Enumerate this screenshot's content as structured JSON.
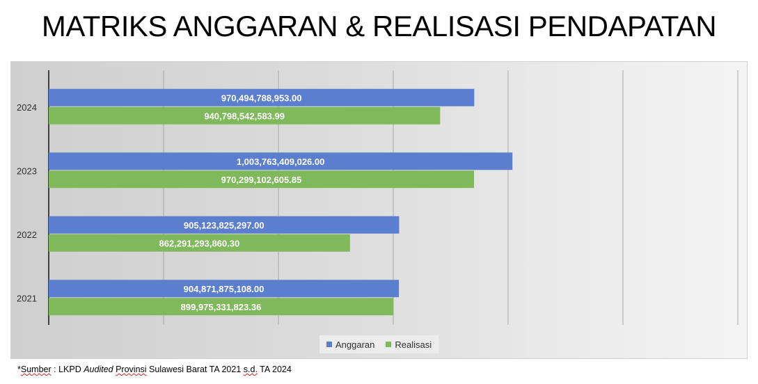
{
  "title": "MATRIKS ANGGARAN & REALISASI PENDAPATAN",
  "source": {
    "prefix": "*",
    "word1": "Sumber",
    "mid1": " : LKPD ",
    "italic": "Audited",
    "mid2": " ",
    "word2": "Provinsi",
    "mid3": " Sulawesi Barat TA 2021 ",
    "word3": "s.d.",
    "mid4": " TA 2024"
  },
  "colors": {
    "anggaran": "#5b7fce",
    "realisasi": "#7fb95b",
    "grid": "#a8a8a8",
    "axis": "#404040"
  },
  "chart_data": {
    "type": "bar",
    "orientation": "horizontal",
    "categories": [
      "2021",
      "2022",
      "2023",
      "2024"
    ],
    "series": [
      {
        "name": "Anggaran",
        "values": [
          904871875108.0,
          905123825297.0,
          1003763409026.0,
          970494788953.0
        ],
        "labels": [
          "904,871,875,108.00",
          "905,123,825,297.00",
          "1,003,763,409,026.00",
          "970,494,788,953.00"
        ]
      },
      {
        "name": "Realisasi",
        "values": [
          899975331823.36,
          862291293860.3,
          970299102605.85,
          940798542583.99
        ],
        "labels": [
          "899,975,331,823.36",
          "862,291,293,860.30",
          "970,299,102,605.85",
          "940,798,542,583.99"
        ]
      }
    ],
    "xlim": [
      600000000000,
      1200000000000
    ],
    "grid": true,
    "legend": "bottom"
  }
}
